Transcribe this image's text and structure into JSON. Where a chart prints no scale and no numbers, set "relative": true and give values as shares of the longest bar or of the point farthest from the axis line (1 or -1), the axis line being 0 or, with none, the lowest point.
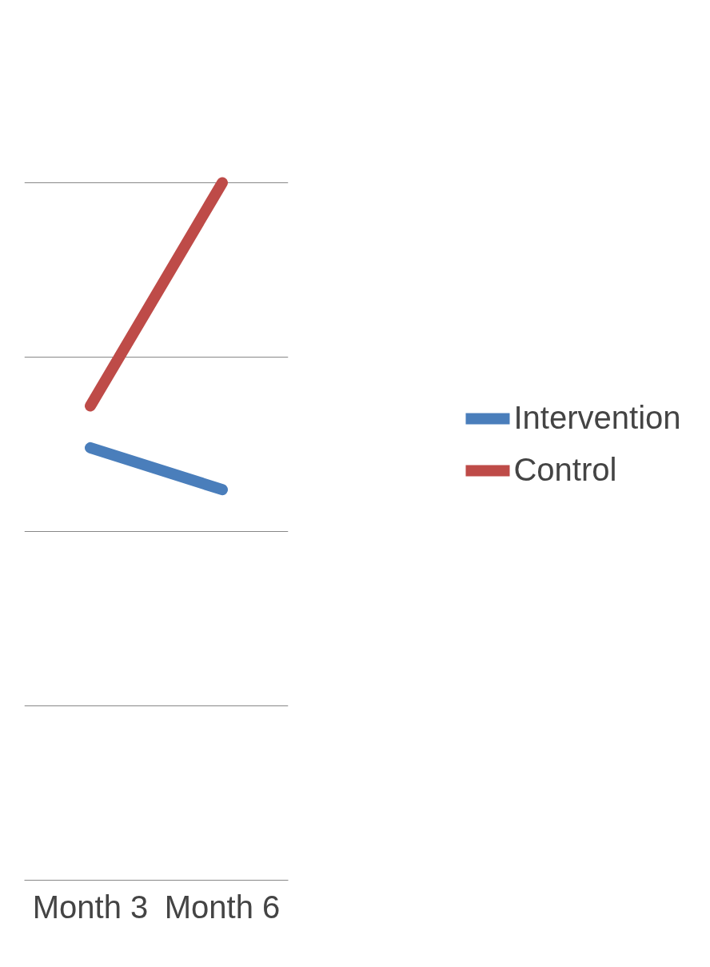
{
  "chart_data": {
    "type": "line",
    "categories": [
      "Month 3",
      "Month 6"
    ],
    "relative": true,
    "grid": "y",
    "legend": "right",
    "line_style": "solid",
    "series": [
      {
        "name": "Intervention",
        "color": "#4a7ebb",
        "values": [
          0.62,
          0.56
        ]
      },
      {
        "name": "Control",
        "color": "#be4b48",
        "values": [
          0.68,
          1.0
        ]
      }
    ]
  }
}
